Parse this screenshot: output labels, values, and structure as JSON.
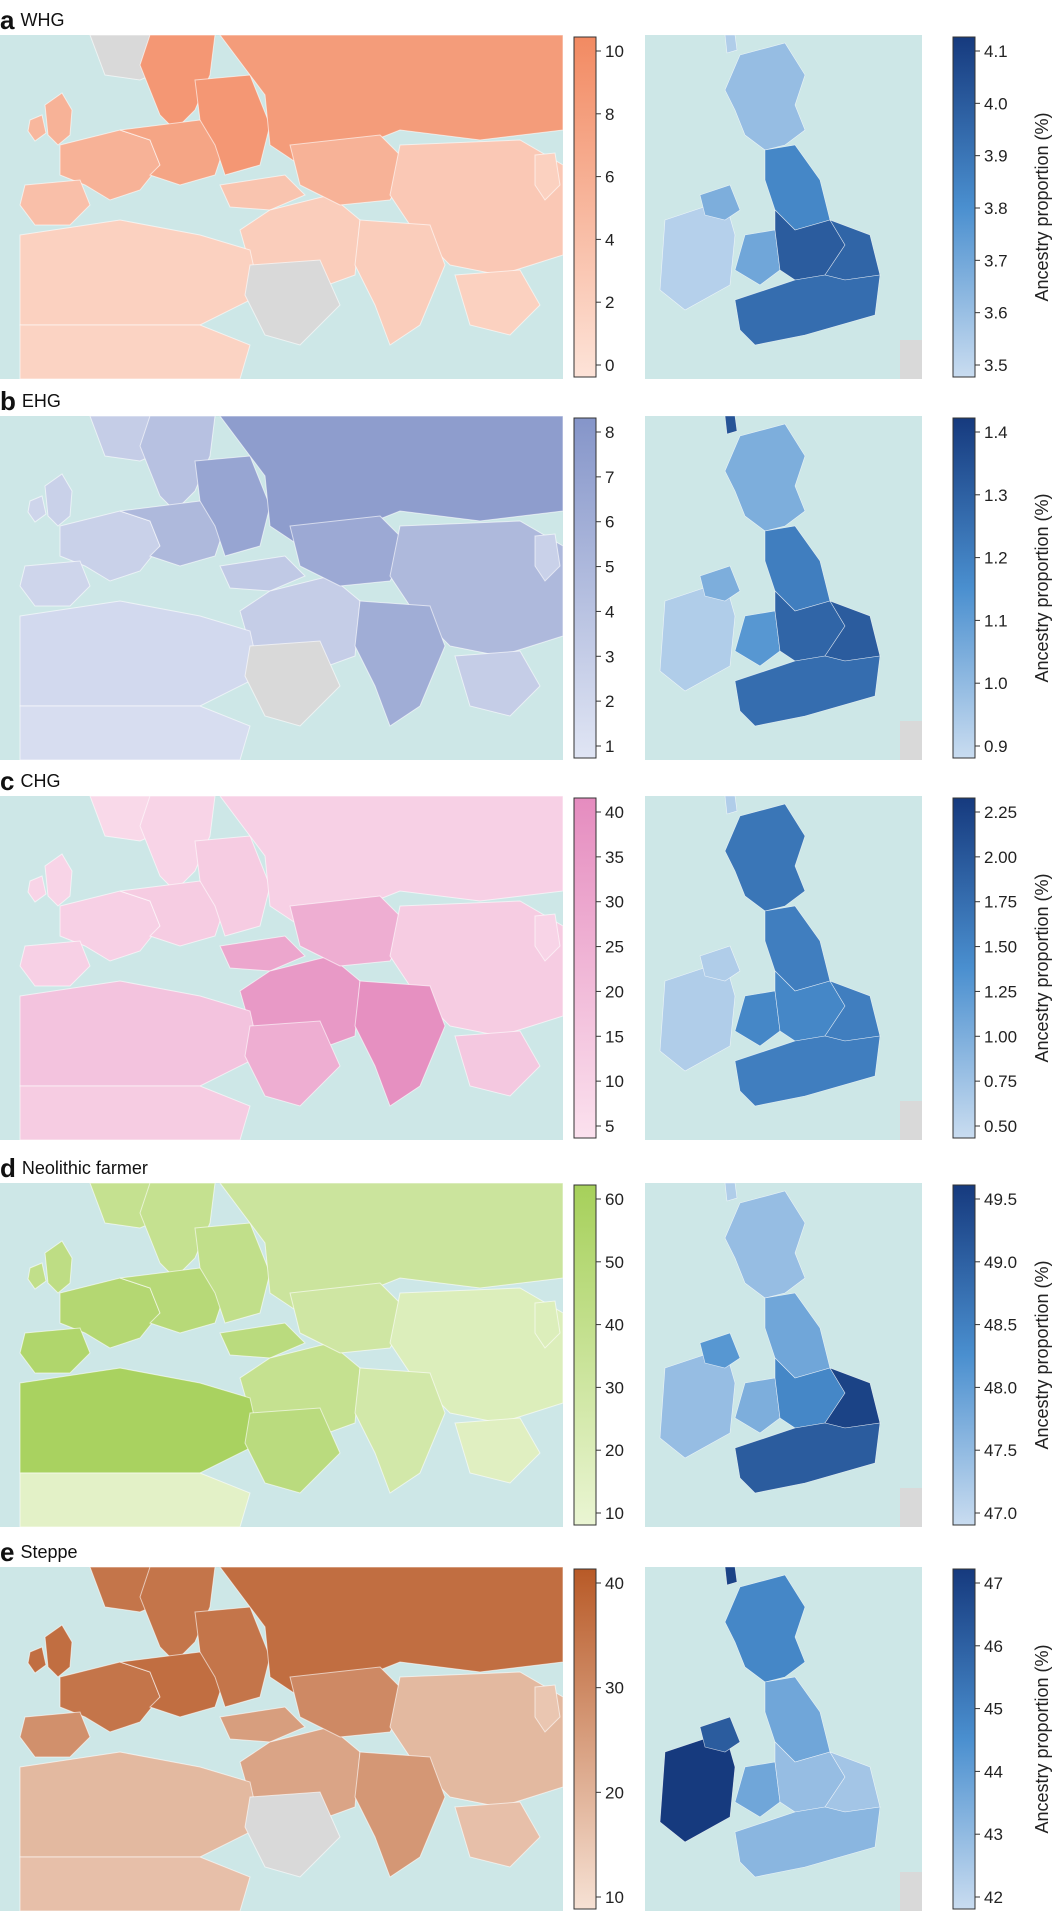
{
  "colorbar_label": "Ancestry proportion (%)",
  "panels": [
    {
      "letter": "a",
      "name": "WHG",
      "world_color": "#f28a62",
      "world_light": "#fde3d8",
      "world_ticks": [
        "0",
        "2",
        "4",
        "6",
        "8",
        "10"
      ],
      "uk_ticks": [
        "3.5",
        "3.6",
        "3.7",
        "3.8",
        "3.9",
        "4.0",
        "4.1"
      ]
    },
    {
      "letter": "b",
      "name": "EHG",
      "world_color": "#8595c9",
      "world_light": "#e0e5f4",
      "world_ticks": [
        "1",
        "2",
        "3",
        "4",
        "5",
        "6",
        "7",
        "8"
      ],
      "uk_ticks": [
        "0.9",
        "1.0",
        "1.1",
        "1.2",
        "1.3",
        "1.4"
      ]
    },
    {
      "letter": "c",
      "name": "CHG",
      "world_color": "#e58cbf",
      "world_light": "#fbe1ee",
      "world_ticks": [
        "5",
        "10",
        "15",
        "20",
        "25",
        "30",
        "35",
        "40"
      ],
      "uk_ticks": [
        "0.50",
        "0.75",
        "1.00",
        "1.25",
        "1.50",
        "1.75",
        "2.00",
        "2.25"
      ]
    },
    {
      "letter": "d",
      "name": "Neolithic farmer",
      "world_color": "#a6d05a",
      "world_light": "#eaf5d3",
      "world_ticks": [
        "10",
        "20",
        "30",
        "40",
        "50",
        "60"
      ],
      "uk_ticks": [
        "47.0",
        "47.5",
        "48.0",
        "48.5",
        "49.0",
        "49.5"
      ]
    },
    {
      "letter": "e",
      "name": "Steppe",
      "world_color": "#b85a27",
      "world_light": "#f6e1d4",
      "world_ticks": [
        "10",
        "20",
        "30",
        "40"
      ],
      "uk_ticks": [
        "42",
        "43",
        "44",
        "45",
        "46",
        "47"
      ]
    }
  ],
  "colors": {
    "sea": "#cde7e7",
    "no_data": "#d9d9d9",
    "uk_low": "#c9dcf0",
    "uk_mid": "#4a8fcf",
    "uk_high": "#163a7e"
  }
}
